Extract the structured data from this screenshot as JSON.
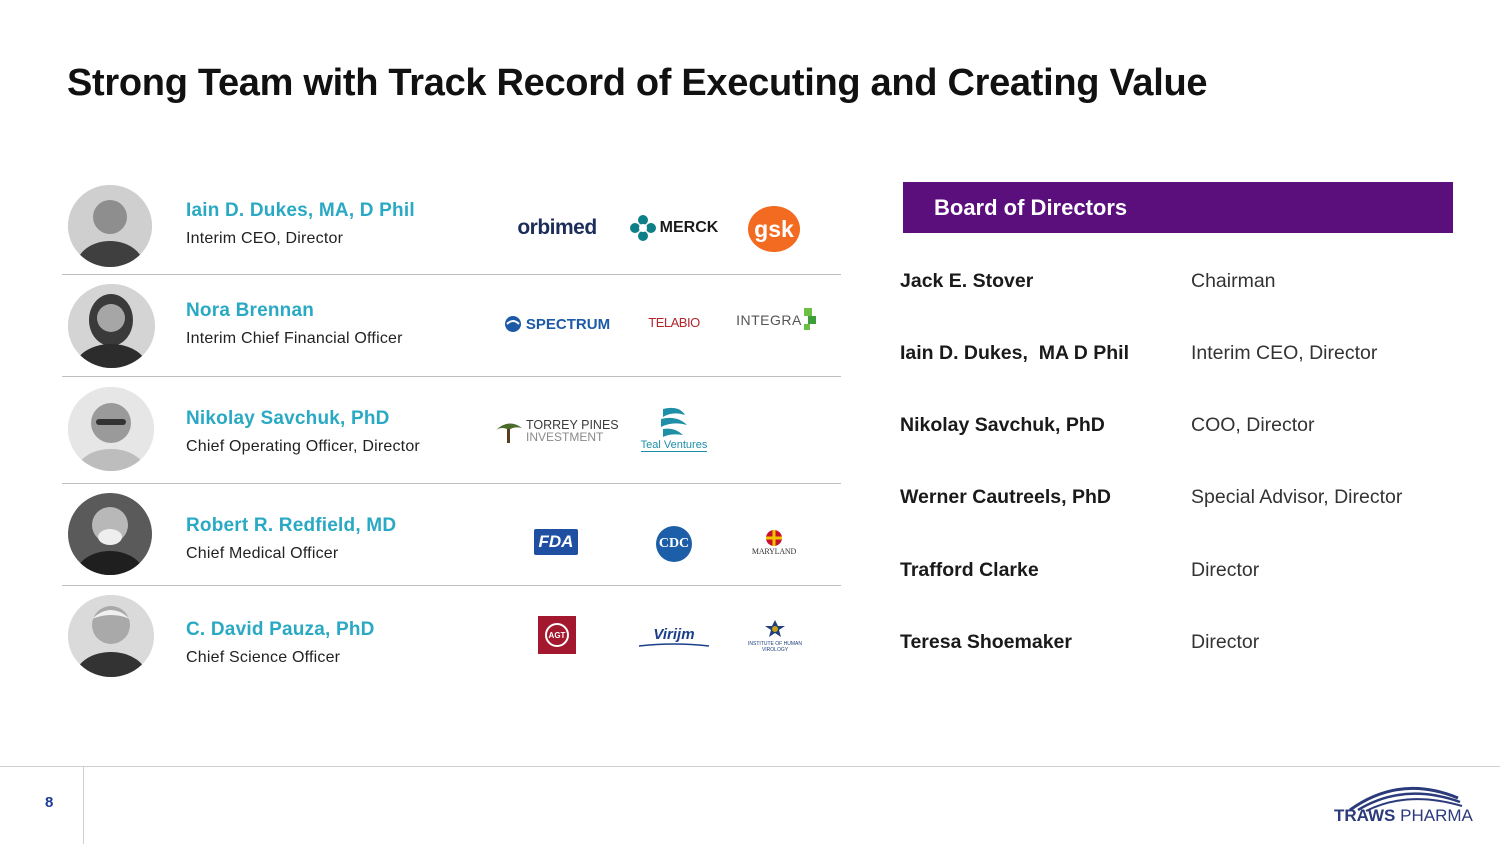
{
  "title": "Strong Team with Track Record of Executing and Creating Value",
  "team": [
    {
      "name": "Iain D. Dukes, MA, D Phil",
      "role": "Interim CEO, Director",
      "logos": [
        "orbimed",
        "MERCK",
        "gsk"
      ]
    },
    {
      "name": "Nora Brennan",
      "role": "Interim Chief Financial Officer",
      "logos": [
        "SPECTRUM",
        "TELABIO",
        "INTEGRA"
      ]
    },
    {
      "name": "Nikolay Savchuk, PhD",
      "role": "Chief Operating Officer, Director",
      "logos": [
        "TORREY PINES",
        "INVESTMENT",
        "Teal Ventures"
      ]
    },
    {
      "name": "Robert R. Redfield, MD",
      "role": "Chief Medical Officer",
      "logos": [
        "FDA",
        "CDC",
        "MARYLAND"
      ]
    },
    {
      "name": "C. David Pauza, PhD",
      "role": "Chief Science Officer",
      "logos": [
        "AGT",
        "Virijm",
        "INSTITUTE OF HUMAN VIROLOGY"
      ]
    }
  ],
  "board": {
    "header": "Board of Directors",
    "members": [
      {
        "name": "Jack E. Stover",
        "title": "Chairman"
      },
      {
        "name": "Iain D. Dukes,  MA D Phil",
        "title": "Interim CEO, Director"
      },
      {
        "name": "Nikolay Savchuk, PhD",
        "title": "COO, Director"
      },
      {
        "name": "Werner Cautreels, PhD",
        "title": "Special Advisor, Director"
      },
      {
        "name": "Trafford Clarke",
        "title": "Director"
      },
      {
        "name": "Teresa Shoemaker",
        "title": "Director"
      }
    ]
  },
  "footer": {
    "page_number": "8",
    "brand_bold": "TRAWS",
    "brand_light": " PHARMA"
  },
  "colors": {
    "accent_teal": "#2aa9c4",
    "board_purple": "#5b0f7d",
    "brand_navy": "#2b3a7a"
  }
}
